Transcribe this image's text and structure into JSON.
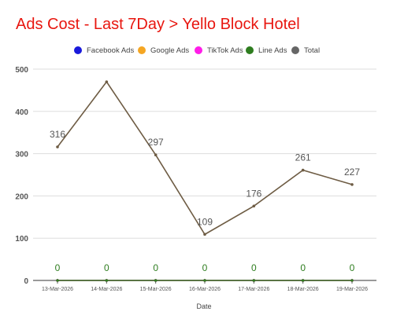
{
  "chart_data": {
    "type": "line",
    "title": "Ads Cost - Last 7Day > Yello Block Hotel",
    "xlabel": "Date",
    "ylabel": "",
    "ylim": [
      0,
      500
    ],
    "yticks": [
      0,
      100,
      200,
      300,
      400,
      500
    ],
    "grid": true,
    "legend_position": "top",
    "categories": [
      "13-Mar-2026",
      "14-Mar-2026",
      "15-Mar-2026",
      "16-Mar-2026",
      "17-Mar-2026",
      "18-Mar-2026",
      "19-Mar-2026"
    ],
    "series": [
      {
        "name": "Facebook Ads",
        "color": "#1a1adb",
        "values": [
          0,
          0,
          0,
          0,
          0,
          0,
          0
        ],
        "show_labels": false
      },
      {
        "name": "Google Ads",
        "color": "#f5a623",
        "values": [
          0,
          0,
          0,
          0,
          0,
          0,
          0
        ],
        "show_labels": false
      },
      {
        "name": "TikTok Ads",
        "color": "#ff1de8",
        "values": [
          0,
          0,
          0,
          0,
          0,
          0,
          0
        ],
        "show_labels": false
      },
      {
        "name": "Line Ads",
        "color": "#2e7d1f",
        "values": [
          0,
          0,
          0,
          0,
          0,
          0,
          0
        ],
        "show_labels": true,
        "label_texts": [
          "0",
          "0",
          "0",
          "0",
          "0",
          "0",
          "0"
        ]
      },
      {
        "name": "Total",
        "color": "#6e5c44",
        "legend_color": "#666666",
        "values": [
          316,
          470,
          297,
          109,
          176,
          261,
          227
        ],
        "show_labels": true,
        "label_texts": [
          "316",
          "",
          "297",
          "109",
          "176",
          "261",
          "227"
        ]
      }
    ]
  }
}
